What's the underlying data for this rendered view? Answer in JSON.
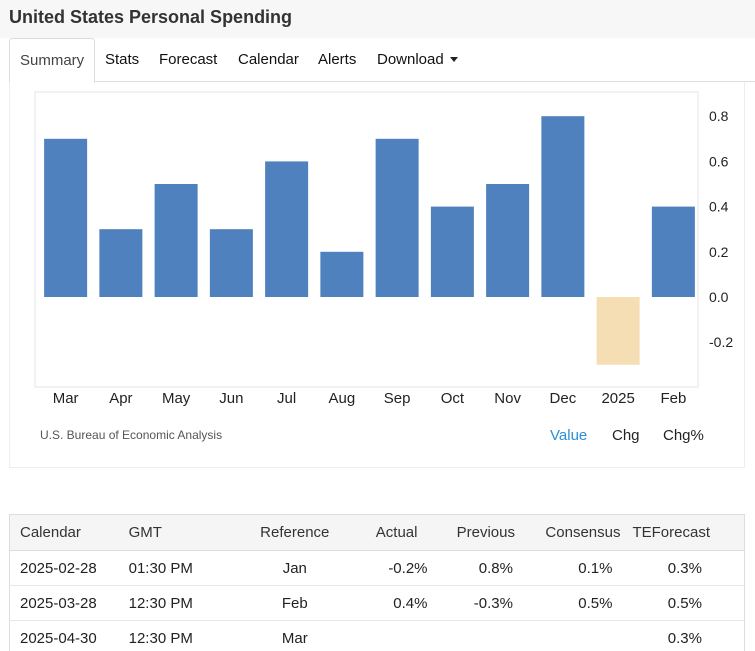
{
  "page_title": "United States Personal Spending",
  "tabs": [
    {
      "label": "Summary",
      "active": true
    },
    {
      "label": "Stats",
      "active": false
    },
    {
      "label": "Forecast",
      "active": false
    },
    {
      "label": "Calendar",
      "active": false
    },
    {
      "label": "Alerts",
      "active": false
    },
    {
      "label": "Download",
      "active": false,
      "dropdown": true
    }
  ],
  "chart": {
    "source": "U.S. Bureau of Economic Analysis",
    "toggles": [
      "Value",
      "Chg",
      "Chg%"
    ],
    "active_toggle": "Value"
  },
  "chart_data": {
    "type": "bar",
    "categories": [
      "Mar",
      "Apr",
      "May",
      "Jun",
      "Jul",
      "Aug",
      "Sep",
      "Oct",
      "Nov",
      "Dec",
      "2025",
      "Feb"
    ],
    "values": [
      0.7,
      0.3,
      0.5,
      0.3,
      0.6,
      0.2,
      0.7,
      0.4,
      0.5,
      0.8,
      -0.3,
      0.4
    ],
    "y_ticks": [
      "0.8",
      "0.6",
      "0.4",
      "0.2",
      "0.0",
      "-0.2"
    ],
    "ylim": [
      -0.4,
      0.9
    ],
    "y_axis_side": "right",
    "grid": false,
    "colors": {
      "positive": "#4e81bd",
      "negative": "#f5deb3"
    }
  },
  "calendar_table": {
    "headers": [
      "Calendar",
      "GMT",
      "Reference",
      "Actual",
      "Previous",
      "Consensus",
      "TEForecast"
    ],
    "rows": [
      [
        "2025-02-28",
        "01:30 PM",
        "Jan",
        "-0.2%",
        "0.8%",
        "0.1%",
        "0.3%"
      ],
      [
        "2025-03-28",
        "12:30 PM",
        "Feb",
        "0.4%",
        "-0.3%",
        "0.5%",
        "0.5%"
      ],
      [
        "2025-04-30",
        "12:30 PM",
        "Mar",
        "",
        "",
        "",
        "0.3%"
      ]
    ]
  }
}
